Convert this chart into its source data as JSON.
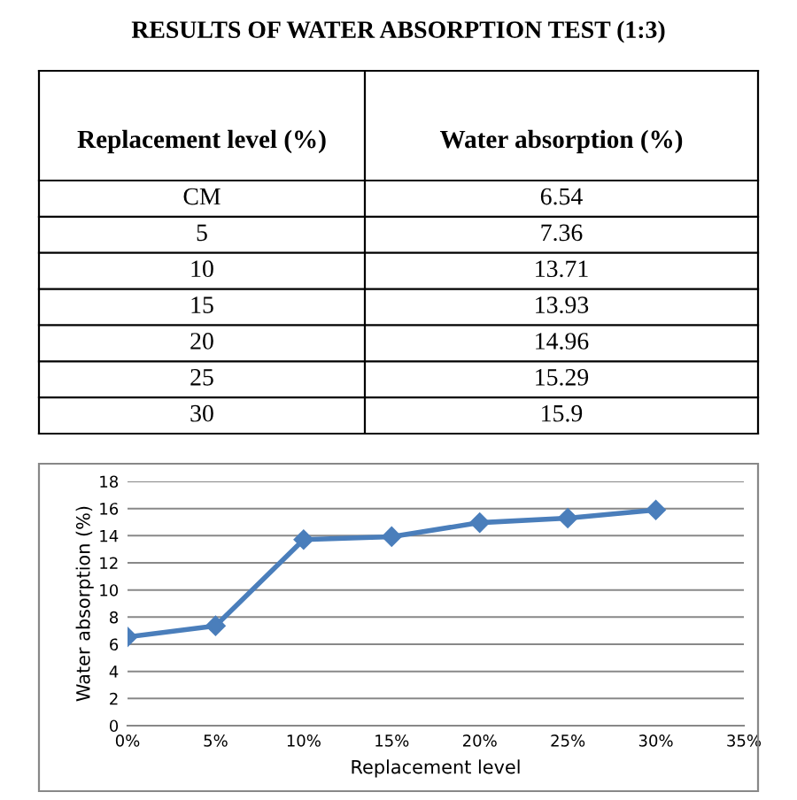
{
  "chart_data": {
    "type": "line",
    "title": "RESULTS OF WATER ABSORPTION TEST (1:3)",
    "annotations": [
      "Replacement level (%)",
      "Water absorption (%)",
      "CM",
      "6.54",
      "5",
      "7.36",
      "10",
      "13.71",
      "15",
      "13.93",
      "20",
      "14.96",
      "25",
      "15.29",
      "30",
      "15.9"
    ],
    "x": [
      0,
      5,
      10,
      15,
      20,
      25,
      30
    ],
    "series": [
      {
        "color": "#4a7ebb",
        "values": [
          6.54,
          7.36,
          13.71,
          13.93,
          14.96,
          15.29,
          15.9
        ]
      }
    ],
    "xlabel": "Replacement level",
    "ylabel": "Water absorption (%)",
    "xlim": [
      0,
      35
    ],
    "xticks": [
      {
        "value": 0,
        "label": "0%"
      },
      {
        "value": 5,
        "label": "5%"
      },
      {
        "value": 10,
        "label": "10%"
      },
      {
        "value": 15,
        "label": "15%"
      },
      {
        "value": 20,
        "label": "20%"
      },
      {
        "value": 25,
        "label": "25%"
      },
      {
        "value": 30,
        "label": "30%"
      },
      {
        "value": 35,
        "label": "35%"
      }
    ],
    "ylim": [
      0,
      18
    ],
    "yticks": [
      0,
      2,
      4,
      6,
      8,
      10,
      12,
      14,
      16,
      18
    ],
    "grid": "y",
    "marker": "diamond",
    "line_style": "solid"
  }
}
